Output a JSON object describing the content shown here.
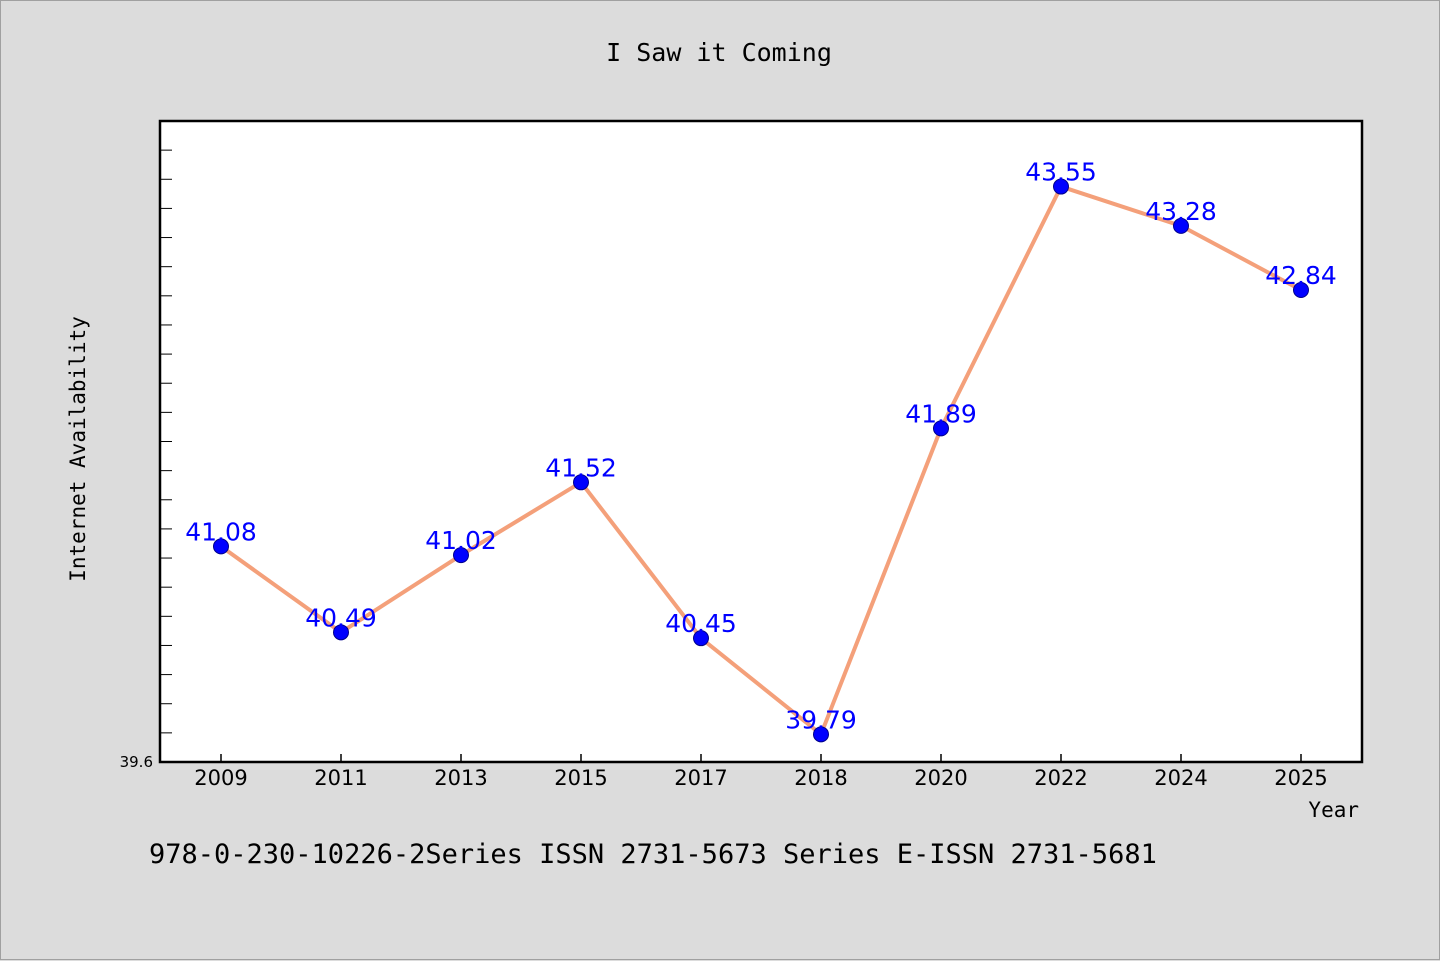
{
  "footer": {
    "text": "978-0-230-10226-2Series ISSN 2731-5673 Series E-ISSN 2731-5681"
  },
  "chart_data": {
    "type": "line",
    "title": "I Saw it Coming",
    "xlabel": "Year",
    "ylabel": "Internet Availability",
    "x": [
      "2009",
      "2011",
      "2013",
      "2015",
      "2017",
      "2018",
      "2020",
      "2022",
      "2024",
      "2025"
    ],
    "y": [
      41.08,
      40.49,
      41.02,
      41.52,
      40.45,
      39.79,
      41.89,
      43.55,
      43.28,
      42.84
    ],
    "data_labels": [
      "41.08",
      "40.49",
      "41.02",
      "41.52",
      "40.45",
      "39.79",
      "41.89",
      "43.55",
      "43.28",
      "42.84"
    ],
    "ylim": [
      39.6,
      44.0
    ],
    "y_tick_labels": [
      "39.6"
    ],
    "grid": false,
    "legend": "none",
    "colors": {
      "line": "#f4a07a",
      "marker": "#0000ff",
      "label": "#0000ff",
      "background": "#dcdcdc",
      "plot_area": "#ffffff"
    }
  }
}
